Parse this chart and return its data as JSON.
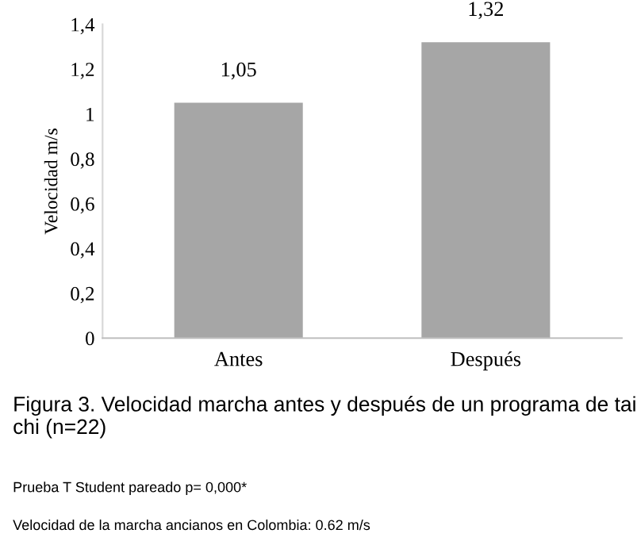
{
  "chart_data": {
    "type": "bar",
    "ylabel": "Velocidad m/s",
    "categories": [
      "Antes",
      "Después"
    ],
    "values": [
      1.05,
      1.32
    ],
    "value_labels": [
      "1,05",
      "1,32"
    ],
    "color": "#a6a6a6",
    "ylim": [
      0,
      1.4
    ],
    "yticks": [
      0,
      {
        "value": 0.2,
        "label": "0,2"
      },
      {
        "value": 0.4,
        "label": "0,4"
      },
      {
        "value": 0.6,
        "label": "0,6"
      },
      {
        "value": 0.8,
        "label": "0,8"
      },
      1,
      {
        "value": 1.2,
        "label": "1,2"
      },
      {
        "value": 1.4,
        "label": "1,4"
      }
    ],
    "grid": false,
    "annotations": [
      "Figura 3. Velocidad marcha antes y después de un programa de tai chi (n=22)",
      "Prueba T Student pareado p= 0,000*",
      "Velocidad de la marcha ancianos en Colombia: 0.62 m/s"
    ]
  }
}
